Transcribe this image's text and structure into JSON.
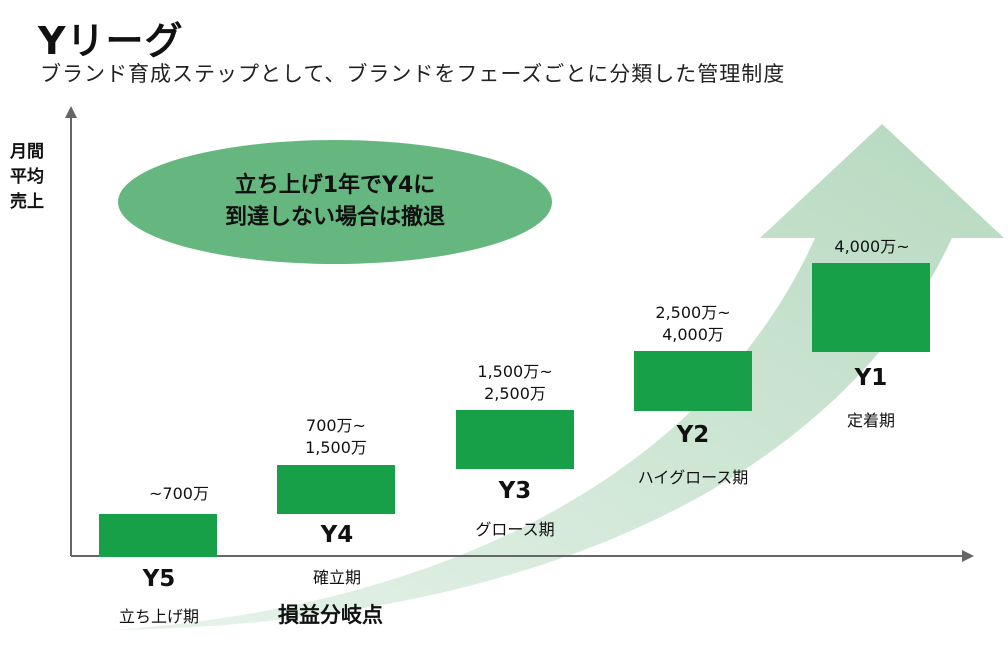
{
  "header": {
    "title": "Yリーグ",
    "subtitle": "ブランド育成ステップとして、ブランドをフェーズごとに分類した管理制度"
  },
  "axis": {
    "y_label_lines": [
      "月間",
      "平均",
      "売上"
    ]
  },
  "callout": {
    "line1": "立ち上げ1年でY4に",
    "line2": "到達しない場合は撤退"
  },
  "tiers": [
    {
      "stage": "Y5",
      "phase": "立ち上げ期",
      "range_lines": [
        "~700万"
      ]
    },
    {
      "stage": "Y4",
      "phase": "確立期",
      "range_lines": [
        "700万~",
        "1,500万"
      ]
    },
    {
      "stage": "Y3",
      "phase": "グロース期",
      "range_lines": [
        "1,500万~",
        "2,500万"
      ]
    },
    {
      "stage": "Y2",
      "phase": "ハイグロース期",
      "range_lines": [
        "2,500万~",
        "4,000万"
      ]
    },
    {
      "stage": "Y1",
      "phase": "定着期",
      "range_lines": [
        "4,000万~"
      ]
    }
  ],
  "breakeven_label": "損益分岐点",
  "colors": {
    "box": "#18a048",
    "callout": "#66b77f",
    "arrow": "#c9e3cf",
    "axis": "#666666"
  }
}
